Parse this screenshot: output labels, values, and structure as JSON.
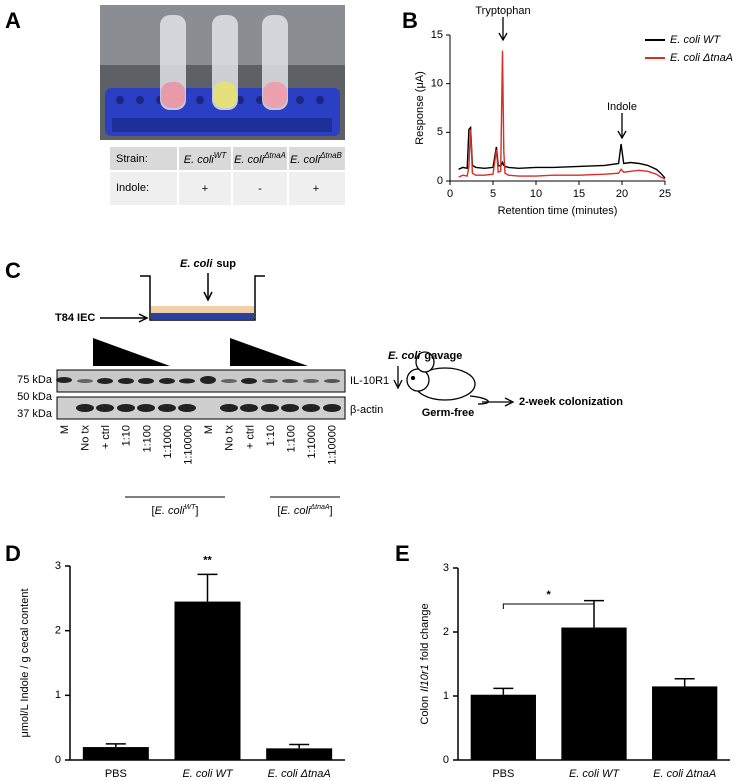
{
  "panel_labels": [
    "A",
    "B",
    "C",
    "D",
    "E"
  ],
  "table": {
    "row_labels": [
      "Strain:",
      "Indole:"
    ],
    "strains": [
      {
        "name": "E. coli",
        "sup": "WT"
      },
      {
        "name": "E. coli",
        "sup": "ΔtnaA"
      },
      {
        "name": "E. coli",
        "sup": "ΔtnaB"
      }
    ],
    "indole": [
      "+",
      "-",
      "+"
    ]
  },
  "diagram": {
    "treatment": {
      "name": "E. coli",
      "text": "sup"
    },
    "cells": "T84 IEC",
    "markers": [
      "75 kDa",
      "50 kDa",
      "37 kDa"
    ],
    "bands": [
      "IL-10R1",
      "β-actin"
    ],
    "lanes": [
      "M",
      "No tx",
      "+ ctrl",
      "1:10",
      "1:100",
      "1:1000",
      "1:10000",
      "M",
      "No tx",
      "+ ctrl",
      "1:10",
      "1:100",
      "1:1000",
      "1:10000"
    ],
    "groups": [
      {
        "open": "[",
        "name": "E. coli",
        "sup": "WT",
        "close": "]"
      },
      {
        "open": "[",
        "name": "E. coli",
        "sup": "ΔtnaA",
        "close": "]"
      }
    ],
    "gavage": {
      "name": "E. coli",
      "text": "gavage"
    },
    "mouse": "Germ-free",
    "outcome": "2-week colonization"
  },
  "chart_data": [
    {
      "type": "line",
      "x_label": "Retention time (minutes)",
      "y_label": "Response (μA)",
      "x": [
        1,
        1.5,
        2,
        2.2,
        2.4,
        2.6,
        3,
        4,
        5,
        5.4,
        5.6,
        5.9,
        6.1,
        6.25,
        6.4,
        6.8,
        8,
        10,
        12,
        15,
        18,
        19.6,
        19.9,
        20.2,
        21,
        22,
        23,
        24,
        24.5,
        25
      ],
      "series": [
        {
          "name": "E. coli WT",
          "color": "#000000",
          "values": [
            1.2,
            1.4,
            1.3,
            5.3,
            5.5,
            1.6,
            1.4,
            1.3,
            1.4,
            3.5,
            1.6,
            1.5,
            1.9,
            1.6,
            1.5,
            1.4,
            1.3,
            1.4,
            1.4,
            1.5,
            1.6,
            1.8,
            3.8,
            1.8,
            1.9,
            1.8,
            1.6,
            1.2,
            0.8,
            0.3
          ]
        },
        {
          "name": "E. coli ΔtnaA",
          "color": "#d62f27",
          "values": [
            0.4,
            0.6,
            0.5,
            1.5,
            5.3,
            0.8,
            0.6,
            0.6,
            0.7,
            3.2,
            0.9,
            1.0,
            13.4,
            3,
            0.8,
            0.6,
            0.5,
            0.5,
            0.6,
            0.6,
            0.7,
            0.8,
            1.2,
            0.9,
            1.0,
            1.1,
            1.0,
            0.7,
            0.4,
            0.2
          ]
        }
      ],
      "xlim": [
        0,
        25
      ],
      "xticks": [
        0,
        5,
        10,
        15,
        20,
        25
      ],
      "ylim": [
        0,
        15
      ],
      "yticks": [
        0,
        5,
        10,
        15
      ],
      "annotations": [
        "Tryptophan",
        "Indole"
      ]
    },
    {
      "type": "bar",
      "y_label": [
        {
          "text": "μmol/L Indole / g cecal content"
        }
      ],
      "categories": [
        "PBS",
        "E. coli WT",
        "E. coli ΔtnaA"
      ],
      "values": [
        0.2,
        2.45,
        0.18
      ],
      "errors": [
        0.05,
        0.42,
        0.06
      ],
      "color": "#000000",
      "ylim": [
        0,
        3
      ],
      "yticks": [
        0,
        1,
        2,
        3
      ],
      "annotations": [
        "**"
      ]
    },
    {
      "type": "bar",
      "y_label": [
        {
          "text": "Colon"
        },
        {
          "text": "Il10r1",
          "italic": true
        },
        {
          "text": "fold change"
        }
      ],
      "categories": [
        "PBS",
        "E. coli WT",
        "E. coli ΔtnaA"
      ],
      "values": [
        1.02,
        2.07,
        1.15
      ],
      "errors": [
        0.1,
        0.42,
        0.12
      ],
      "color": "#000000",
      "ylim": [
        0,
        3
      ],
      "yticks": [
        0,
        1,
        2,
        3
      ],
      "annotations": [
        "*"
      ]
    }
  ]
}
